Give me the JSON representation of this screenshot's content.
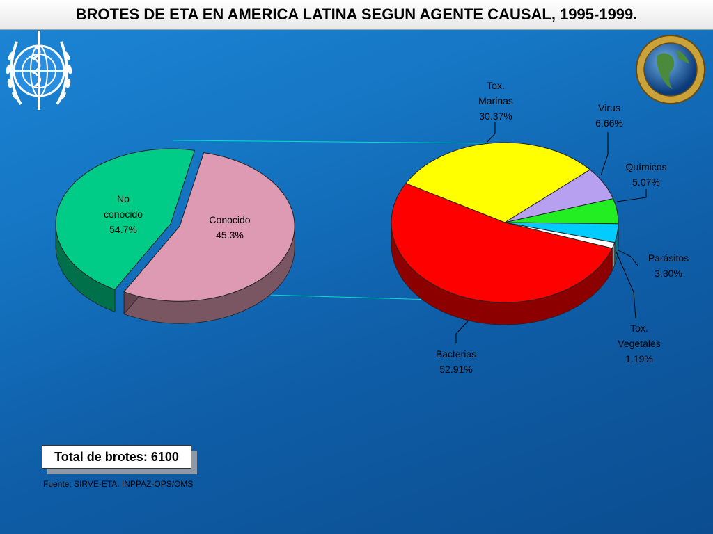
{
  "title": "BROTES DE ETA EN AMERICA LATINA SEGUN AGENTE CAUSAL, 1995-1999.",
  "total": "Total de brotes: 6100",
  "source": "Fuente: SIRVE-ETA. INPPAZ-OPS/OMS",
  "logos": {
    "left": "who-emblem",
    "right": "pro-salute-novi-mundi-globe"
  },
  "chart_data": [
    {
      "type": "pie",
      "title": "",
      "slices": [
        {
          "label_lines": [
            "No",
            "conocido",
            "54.7%"
          ],
          "value": 54.7,
          "color": "#dd9ab2",
          "exploded": true
        },
        {
          "label_lines": [
            "Conocido",
            "45.3%"
          ],
          "value": 45.3,
          "color": "#00cc88"
        }
      ]
    },
    {
      "type": "pie",
      "title": "",
      "slices": [
        {
          "label_lines": [
            "Tox.",
            "Marinas",
            "30.37%"
          ],
          "value": 30.37,
          "color": "#ffff00"
        },
        {
          "label_lines": [
            "Virus",
            "6.66%"
          ],
          "value": 6.66,
          "color": "#b8a0f0"
        },
        {
          "label_lines": [
            "Químicos",
            "5.07%"
          ],
          "value": 5.07,
          "color": "#22ee22"
        },
        {
          "label_lines": [
            "Parásitos",
            "3.80%"
          ],
          "value": 3.8,
          "color": "#00ccff"
        },
        {
          "label_lines": [
            "Tox.",
            "Vegetales",
            "1.19%"
          ],
          "value": 1.19,
          "color": "#ffffff"
        },
        {
          "label_lines": [
            "Bacterias",
            "52.91%"
          ],
          "value": 52.91,
          "color": "#ff0000"
        }
      ]
    }
  ]
}
